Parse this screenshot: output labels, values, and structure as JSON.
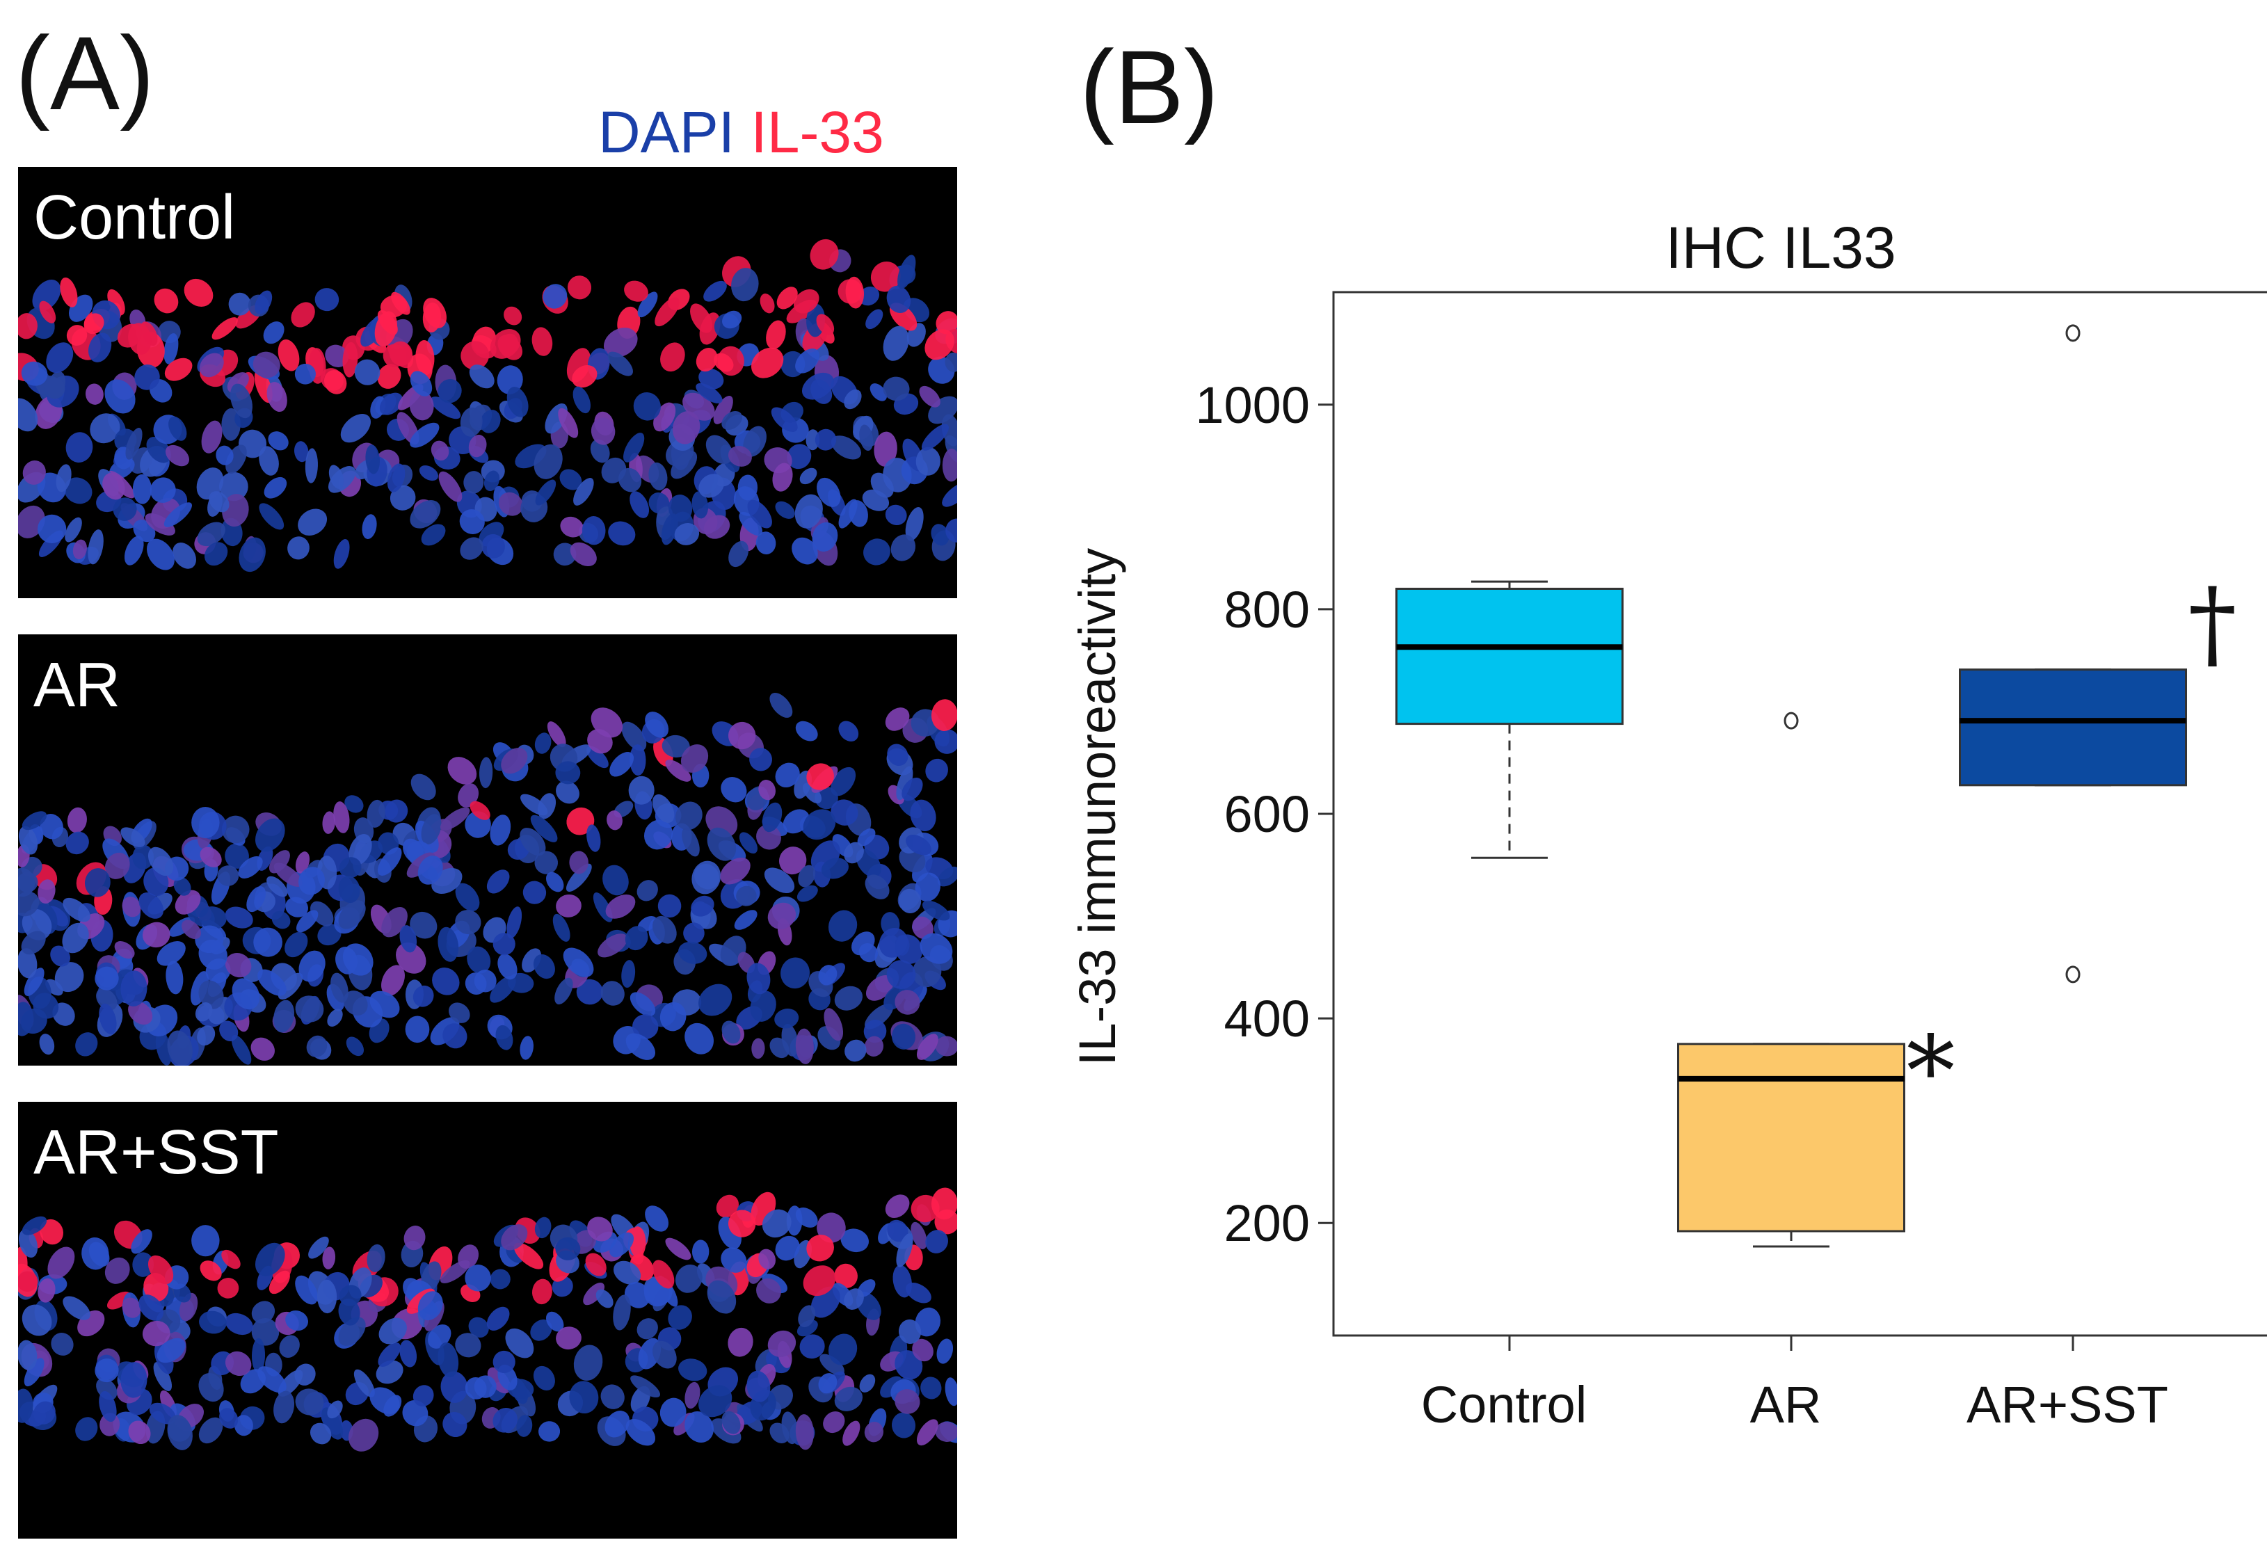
{
  "panels": {
    "a_letter": "(A)",
    "b_letter": "(B)"
  },
  "legend": {
    "dapi": "DAPI",
    "il33": "IL-33",
    "dapi_color": "#1a3fa8",
    "il33_color": "#ff2a45"
  },
  "micrographs": [
    {
      "label": "Control",
      "il33_intensity": "high"
    },
    {
      "label": "AR",
      "il33_intensity": "low"
    },
    {
      "label": "AR+SST",
      "il33_intensity": "moderate"
    }
  ],
  "chart_data": {
    "type": "boxplot",
    "title": "IHC IL33",
    "xlabel": "",
    "ylabel": "IL-33 immunoreactivity",
    "ylim": [
      90,
      1110
    ],
    "yticks": [
      200,
      400,
      600,
      800,
      1000
    ],
    "ytick_labels": [
      "200",
      "400",
      "600",
      "800",
      "1000"
    ],
    "categories": [
      "Control",
      "AR",
      "AR+SST"
    ],
    "boxes": [
      {
        "name": "Control",
        "color": "#00c3ef",
        "whisker_low": 557,
        "q1": 688,
        "median": 763,
        "q3": 820,
        "whisker_high": 827,
        "outliers": [],
        "annotation": ""
      },
      {
        "name": "AR",
        "color": "#fcc86a",
        "whisker_low": 177,
        "q1": 192,
        "median": 341,
        "q3": 375,
        "whisker_high": 375,
        "outliers": [
          691
        ],
        "annotation": "*"
      },
      {
        "name": "AR+SST",
        "color": "#0c4aa0",
        "whisker_low": 628,
        "q1": 628,
        "median": 691,
        "q3": 741,
        "whisker_high": 741,
        "outliers": [
          1070,
          443
        ],
        "annotation": "†"
      }
    ]
  }
}
